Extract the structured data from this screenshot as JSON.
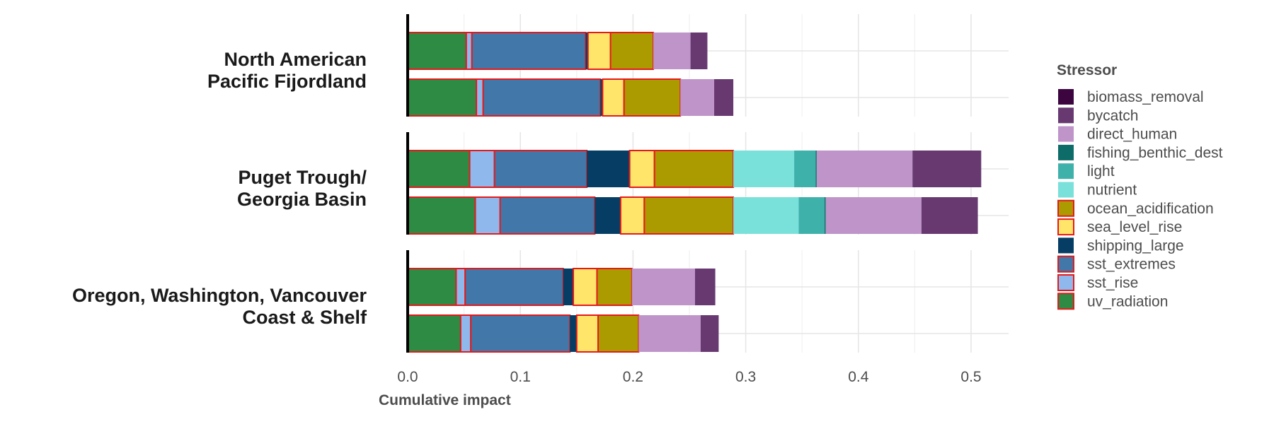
{
  "chart_data": {
    "type": "bar",
    "orientation": "horizontal",
    "stacked": true,
    "xlabel": "Cumulative impact",
    "xlim": [
      0,
      0.53
    ],
    "x_ticks": [
      0.0,
      0.1,
      0.2,
      0.3,
      0.4,
      0.5
    ],
    "x_tick_labels": [
      "0.0",
      "0.1",
      "0.2",
      "0.3",
      "0.4",
      "0.5"
    ],
    "grid": true,
    "legend_title": "Stressor",
    "legend_position": "right",
    "stressors": [
      {
        "name": "uv_radiation",
        "color": "#2e8b44",
        "climate": true
      },
      {
        "name": "sst_rise",
        "color": "#8fb8ec",
        "climate": true
      },
      {
        "name": "sst_extremes",
        "color": "#4177a9",
        "climate": true
      },
      {
        "name": "shipping_large",
        "color": "#053d64",
        "climate": false
      },
      {
        "name": "sea_level_rise",
        "color": "#ffe66b",
        "climate": true
      },
      {
        "name": "ocean_acidification",
        "color": "#ab9a00",
        "climate": true
      },
      {
        "name": "nutrient",
        "color": "#7ae0da",
        "climate": false
      },
      {
        "name": "light",
        "color": "#3eb1ab",
        "climate": false
      },
      {
        "name": "fishing_benthic_dest",
        "color": "#0d6b68",
        "climate": false
      },
      {
        "name": "direct_human",
        "color": "#be94c9",
        "climate": false
      },
      {
        "name": "bycatch",
        "color": "#683971",
        "climate": false
      },
      {
        "name": "biomass_removal",
        "color": "#3c0540",
        "climate": false
      }
    ],
    "legend_order": [
      "biomass_removal",
      "bycatch",
      "direct_human",
      "fishing_benthic_dest",
      "light",
      "nutrient",
      "ocean_acidification",
      "sea_level_rise",
      "shipping_large",
      "sst_extremes",
      "sst_rise",
      "uv_radiation"
    ],
    "climate_outline_color": "#e41a1c",
    "panels": [
      {
        "region": [
          "North American",
          "Pacific Fijordland"
        ],
        "bars": [
          {
            "values": {
              "uv_radiation": 0.052,
              "sst_rise": 0.005,
              "sst_extremes": 0.101,
              "shipping_large": 0.002,
              "sea_level_rise": 0.02,
              "ocean_acidification": 0.038,
              "nutrient": 0.0,
              "light": 0.0,
              "fishing_benthic_dest": 0.0,
              "direct_human": 0.033,
              "bycatch": 0.015,
              "biomass_removal": 0.0
            }
          },
          {
            "values": {
              "uv_radiation": 0.061,
              "sst_rise": 0.006,
              "sst_extremes": 0.104,
              "shipping_large": 0.002,
              "sea_level_rise": 0.019,
              "ocean_acidification": 0.05,
              "nutrient": 0.0,
              "light": 0.0,
              "fishing_benthic_dest": 0.0,
              "direct_human": 0.03,
              "bycatch": 0.017,
              "biomass_removal": 0.0
            }
          }
        ]
      },
      {
        "region": [
          "Puget Trough/",
          "Georgia Basin"
        ],
        "bars": [
          {
            "values": {
              "uv_radiation": 0.055,
              "sst_rise": 0.022,
              "sst_extremes": 0.082,
              "shipping_large": 0.038,
              "sea_level_rise": 0.022,
              "ocean_acidification": 0.07,
              "nutrient": 0.054,
              "light": 0.019,
              "fishing_benthic_dest": 0.001,
              "direct_human": 0.085,
              "bycatch": 0.061,
              "biomass_removal": 0.0
            }
          },
          {
            "values": {
              "uv_radiation": 0.06,
              "sst_rise": 0.022,
              "sst_extremes": 0.084,
              "shipping_large": 0.023,
              "sea_level_rise": 0.021,
              "ocean_acidification": 0.079,
              "nutrient": 0.058,
              "light": 0.023,
              "fishing_benthic_dest": 0.001,
              "direct_human": 0.085,
              "bycatch": 0.05,
              "biomass_removal": 0.0
            }
          }
        ]
      },
      {
        "region": [
          "Oregon, Washington, Vancouver",
          "Coast & Shelf"
        ],
        "bars": [
          {
            "values": {
              "uv_radiation": 0.043,
              "sst_rise": 0.008,
              "sst_extremes": 0.087,
              "shipping_large": 0.009,
              "sea_level_rise": 0.021,
              "ocean_acidification": 0.031,
              "nutrient": 0.0,
              "light": 0.0,
              "fishing_benthic_dest": 0.0,
              "direct_human": 0.056,
              "bycatch": 0.018,
              "biomass_removal": 0.0
            }
          },
          {
            "values": {
              "uv_radiation": 0.047,
              "sst_rise": 0.009,
              "sst_extremes": 0.088,
              "shipping_large": 0.006,
              "sea_level_rise": 0.019,
              "ocean_acidification": 0.036,
              "nutrient": 0.0,
              "light": 0.0,
              "fishing_benthic_dest": 0.0,
              "direct_human": 0.055,
              "bycatch": 0.016,
              "biomass_removal": 0.0
            }
          }
        ]
      }
    ]
  }
}
